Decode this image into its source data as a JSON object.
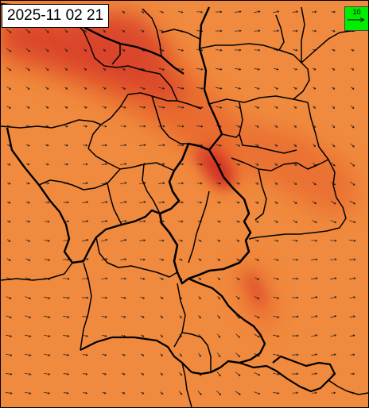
{
  "map": {
    "timestamp": "2025-11 02 21",
    "legend": {
      "reference_speed": "10",
      "box_color": "#00ee00"
    },
    "palette": {
      "background": "#f08a3e",
      "medium": "#e8692f",
      "high": "#d8402a",
      "peak": "#cc2a22",
      "border_color": "#000000",
      "arrow_color": "#1a1a1a"
    },
    "wind_field": {
      "dominant_direction": "east-southeast",
      "color": "#1a1a1a"
    }
  }
}
